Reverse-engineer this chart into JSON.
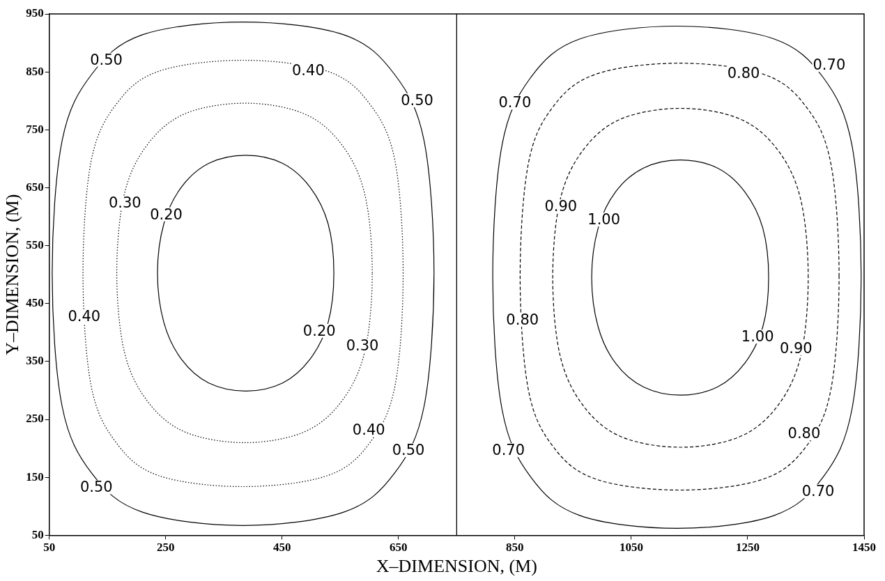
{
  "chart_data": {
    "type": "line",
    "xlabel": "X–DIMENSION, (M)",
    "ylabel": "Y–DIMENSION, (M)",
    "xlim": [
      50,
      1450
    ],
    "xticks": [
      50,
      250,
      450,
      650,
      850,
      1050,
      1250,
      1450
    ],
    "ylim": [
      50,
      950
    ],
    "yticks": [
      50,
      150,
      250,
      350,
      450,
      550,
      650,
      750,
      850,
      950
    ],
    "ref_lines": [
      {
        "axis": "x",
        "value": 750,
        "color": "#000000",
        "line_style": "solid"
      }
    ],
    "annotations": [
      "0.50",
      "0.40",
      "0.50",
      "0.30",
      "0.20",
      "0.40",
      "0.20",
      "0.30",
      "0.40",
      "0.50",
      "0.50",
      "0.70",
      "0.80",
      "0.70",
      "0.90",
      "1.00",
      "0.80",
      "1.00",
      "0.90",
      "0.70",
      "0.80",
      "0.70"
    ]
  }
}
